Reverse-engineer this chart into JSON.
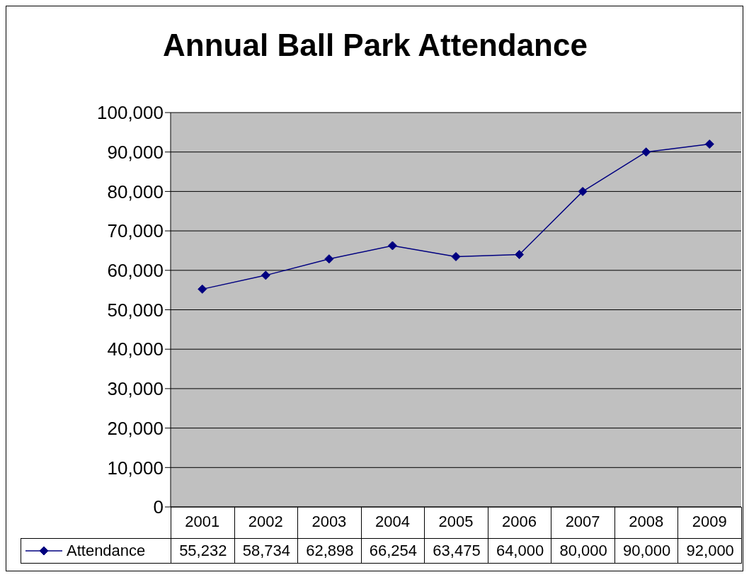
{
  "chart_data": {
    "type": "line",
    "title": "Annual Ball Park Attendance",
    "categories": [
      "2001",
      "2002",
      "2003",
      "2004",
      "2005",
      "2006",
      "2007",
      "2008",
      "2009"
    ],
    "series": [
      {
        "name": "Attendance",
        "color": "#000080",
        "values": [
          55232,
          58734,
          62898,
          66254,
          63475,
          64000,
          80000,
          90000,
          92000
        ],
        "value_labels": [
          "55,232",
          "58,734",
          "62,898",
          "66,254",
          "63,475",
          "64,000",
          "80,000",
          "90,000",
          "92,000"
        ]
      }
    ],
    "ylim": [
      0,
      100000
    ],
    "yticks": [
      0,
      {
        "value": 10000,
        "label": "10,000"
      },
      {
        "value": 20000,
        "label": "20,000"
      },
      {
        "value": 30000,
        "label": "30,000"
      },
      {
        "value": 40000,
        "label": "40,000"
      },
      {
        "value": 50000,
        "label": "50,000"
      },
      {
        "value": 60000,
        "label": "60,000"
      },
      {
        "value": 70000,
        "label": "70,000"
      },
      {
        "value": 80000,
        "label": "80,000"
      },
      {
        "value": 90000,
        "label": "90,000"
      },
      {
        "value": 100000,
        "label": "100,000"
      }
    ],
    "grid": "y",
    "legend": "bottom",
    "marker": "diamond",
    "line_style": "solid"
  }
}
